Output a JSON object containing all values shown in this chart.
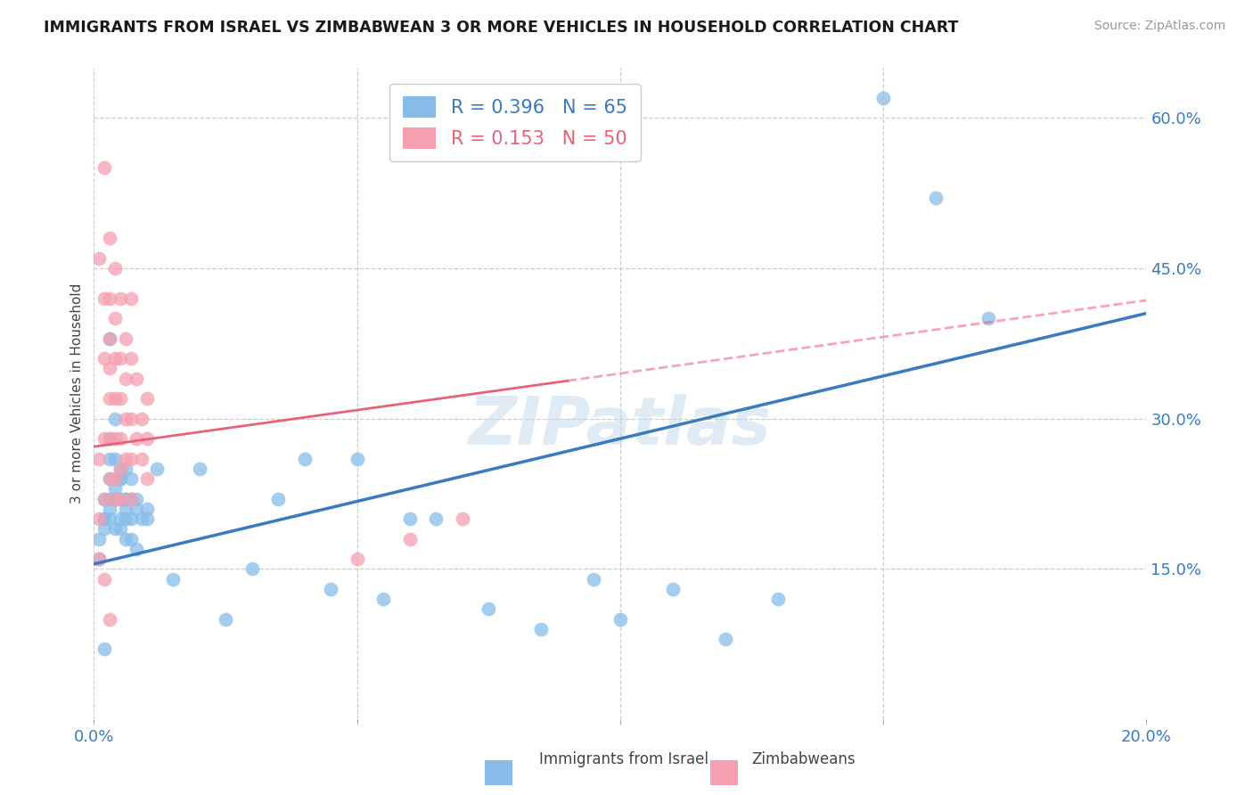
{
  "title": "IMMIGRANTS FROM ISRAEL VS ZIMBABWEAN 3 OR MORE VEHICLES IN HOUSEHOLD CORRELATION CHART",
  "source": "Source: ZipAtlas.com",
  "ylabel": "3 or more Vehicles in Household",
  "legend_label1": "Immigrants from Israel",
  "legend_label2": "Zimbabweans",
  "R1": 0.396,
  "N1": 65,
  "R2": 0.153,
  "N2": 50,
  "color1": "#87bde8",
  "color2": "#f4a0b0",
  "trendline1_color": "#3a7abf",
  "trendline2_color": "#e8607a",
  "xlim": [
    0.0,
    0.2
  ],
  "ylim": [
    0.0,
    0.65
  ],
  "xticks": [
    0.0,
    0.05,
    0.1,
    0.15,
    0.2
  ],
  "xticklabels": [
    "0.0%",
    "",
    "",
    "",
    "20.0%"
  ],
  "yticks_right": [
    0.15,
    0.3,
    0.45,
    0.6
  ],
  "ytick_right_labels": [
    "15.0%",
    "30.0%",
    "45.0%",
    "60.0%"
  ],
  "trendline1_x0": 0.0,
  "trendline1_y0": 0.155,
  "trendline1_x1": 0.2,
  "trendline1_y1": 0.405,
  "trendline2_x0": 0.0,
  "trendline2_y0": 0.272,
  "trendline2_x1": 0.2,
  "trendline2_y1": 0.418,
  "trendline2_solid_end": 0.09,
  "scatter1_x": [
    0.001,
    0.002,
    0.002,
    0.003,
    0.001,
    0.002,
    0.003,
    0.003,
    0.004,
    0.002,
    0.003,
    0.004,
    0.004,
    0.005,
    0.005,
    0.006,
    0.003,
    0.004,
    0.004,
    0.005,
    0.005,
    0.006,
    0.006,
    0.004,
    0.005,
    0.006,
    0.007,
    0.003,
    0.004,
    0.005,
    0.006,
    0.007,
    0.006,
    0.007,
    0.008,
    0.007,
    0.008,
    0.009,
    0.01,
    0.008,
    0.01,
    0.012,
    0.015,
    0.02,
    0.025,
    0.03,
    0.04,
    0.05,
    0.06,
    0.035,
    0.045,
    0.055,
    0.065,
    0.075,
    0.085,
    0.095,
    0.11,
    0.1,
    0.12,
    0.13,
    0.002,
    0.15,
    0.16,
    0.17,
    0.003
  ],
  "scatter1_y": [
    0.18,
    0.2,
    0.22,
    0.21,
    0.16,
    0.19,
    0.2,
    0.24,
    0.22,
    0.2,
    0.22,
    0.19,
    0.26,
    0.22,
    0.25,
    0.22,
    0.28,
    0.3,
    0.22,
    0.24,
    0.2,
    0.21,
    0.25,
    0.23,
    0.24,
    0.22,
    0.24,
    0.26,
    0.22,
    0.19,
    0.18,
    0.2,
    0.2,
    0.22,
    0.21,
    0.18,
    0.22,
    0.2,
    0.21,
    0.17,
    0.2,
    0.25,
    0.14,
    0.25,
    0.1,
    0.15,
    0.26,
    0.26,
    0.2,
    0.22,
    0.13,
    0.12,
    0.2,
    0.11,
    0.09,
    0.14,
    0.13,
    0.1,
    0.08,
    0.12,
    0.07,
    0.62,
    0.52,
    0.4,
    0.38
  ],
  "scatter2_x": [
    0.001,
    0.001,
    0.001,
    0.002,
    0.002,
    0.002,
    0.002,
    0.002,
    0.003,
    0.003,
    0.003,
    0.003,
    0.003,
    0.003,
    0.003,
    0.004,
    0.004,
    0.004,
    0.004,
    0.004,
    0.004,
    0.004,
    0.005,
    0.005,
    0.005,
    0.005,
    0.005,
    0.005,
    0.006,
    0.006,
    0.006,
    0.006,
    0.007,
    0.007,
    0.007,
    0.007,
    0.007,
    0.008,
    0.008,
    0.009,
    0.009,
    0.01,
    0.01,
    0.01,
    0.05,
    0.06,
    0.07,
    0.002,
    0.003,
    0.001
  ],
  "scatter2_y": [
    0.46,
    0.26,
    0.2,
    0.55,
    0.42,
    0.36,
    0.28,
    0.22,
    0.48,
    0.42,
    0.38,
    0.35,
    0.32,
    0.28,
    0.24,
    0.45,
    0.4,
    0.36,
    0.32,
    0.28,
    0.24,
    0.22,
    0.42,
    0.36,
    0.32,
    0.28,
    0.25,
    0.22,
    0.38,
    0.34,
    0.3,
    0.26,
    0.42,
    0.36,
    0.3,
    0.26,
    0.22,
    0.34,
    0.28,
    0.3,
    0.26,
    0.32,
    0.28,
    0.24,
    0.16,
    0.18,
    0.2,
    0.14,
    0.1,
    0.16
  ]
}
